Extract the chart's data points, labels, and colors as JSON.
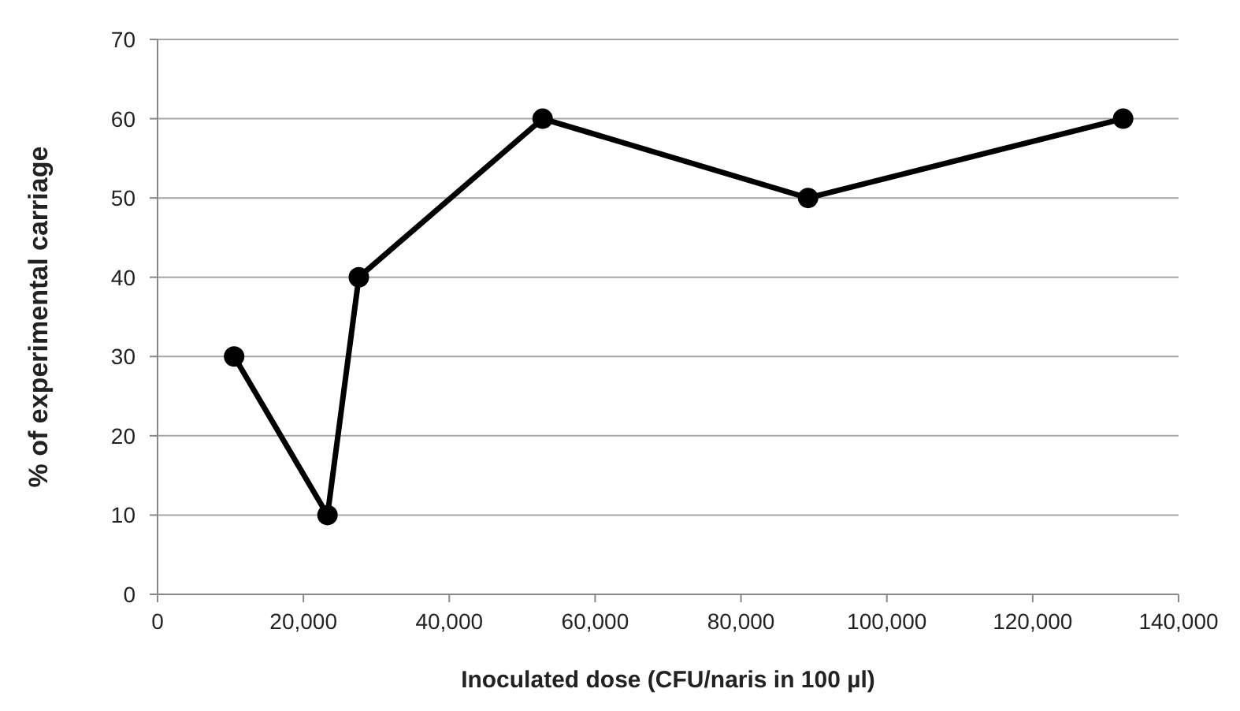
{
  "chart_data": {
    "type": "line",
    "xlabel": "Inoculated dose (CFU/naris in 100 µl)",
    "ylabel": "% of experimental carriage",
    "x": [
      10500,
      23300,
      27600,
      52800,
      89200,
      132400
    ],
    "series": [
      {
        "color": "#000000",
        "values": [
          30,
          10,
          40,
          60,
          50,
          60
        ]
      }
    ],
    "xlim": [
      0,
      140000
    ],
    "xticks": [
      {
        "value": 0,
        "label": "0"
      },
      {
        "value": 20000,
        "label": "20,000"
      },
      {
        "value": 40000,
        "label": "40,000"
      },
      {
        "value": 60000,
        "label": "60,000"
      },
      {
        "value": 80000,
        "label": "80,000"
      },
      {
        "value": 100000,
        "label": "100,000"
      },
      {
        "value": 120000,
        "label": "120,000"
      },
      {
        "value": 140000,
        "label": "140,000"
      }
    ],
    "ylim": [
      0,
      70
    ],
    "yticks": [
      0,
      10,
      20,
      30,
      40,
      50,
      60,
      70
    ],
    "grid": "y",
    "marker": "circle",
    "line_style": "solid"
  }
}
